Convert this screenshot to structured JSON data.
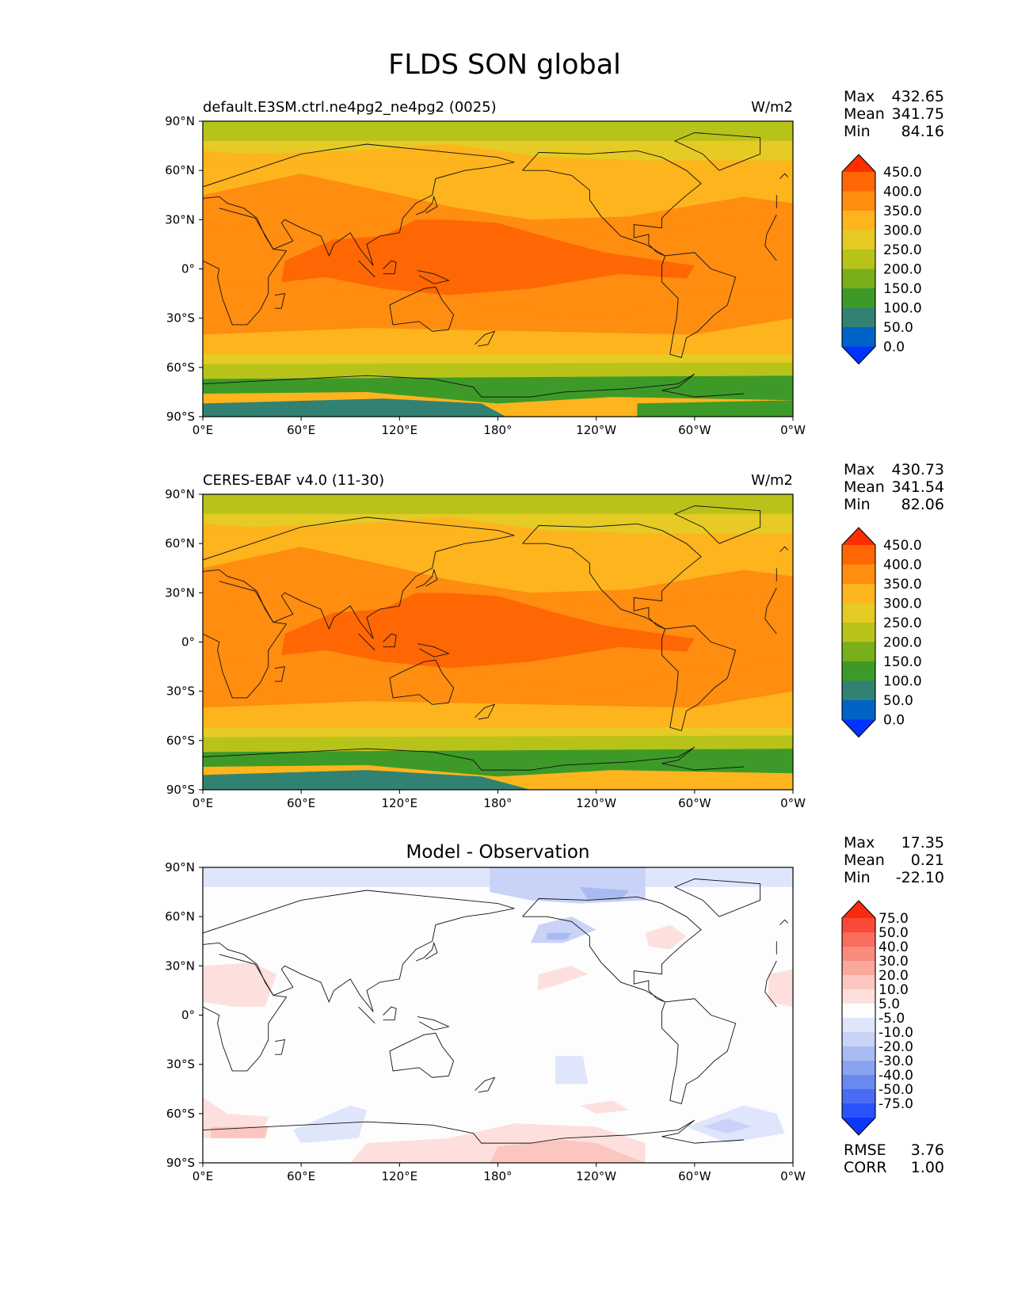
{
  "figure": {
    "title": "FLDS SON global"
  },
  "colors": {
    "mean_scale": [
      "#0033ff",
      "#0063c6",
      "#318272",
      "#3d9a28",
      "#7aaf1c",
      "#b8c31a",
      "#e5cb24",
      "#fdb41d",
      "#ff8d10",
      "#ff6705",
      "#ff2d00"
    ],
    "diff_scale": [
      "#0b37fd",
      "#2b53fb",
      "#4a6cf4",
      "#6a89ee",
      "#8aa2f0",
      "#a9baf3",
      "#c8d3f7",
      "#dfe6fb",
      "#fdfdfd",
      "#fde0de",
      "#fcc6c0",
      "#faa79c",
      "#f88b7c",
      "#f86d5c",
      "#f94a37",
      "#fa2a0f"
    ]
  },
  "chart_data": [
    {
      "type": "contour-map",
      "title_left": "default.E3SM.ctrl.ne4pg2_ne4pg2 (0025)",
      "units": "W/m2",
      "xticks": [
        "0°E",
        "60°E",
        "120°E",
        "180°",
        "120°W",
        "60°W",
        "0°W"
      ],
      "yticks": [
        "90°N",
        "60°N",
        "30°N",
        "0°",
        "30°S",
        "60°S",
        "90°S"
      ],
      "stats": {
        "max": {
          "label": "Max",
          "value": "432.65"
        },
        "mean": {
          "label": "Mean",
          "value": "341.75"
        },
        "min": {
          "label": "Min",
          "value": "84.16"
        }
      },
      "colorbar": {
        "levels": [
          "450.0",
          "400.0",
          "350.0",
          "300.0",
          "250.0",
          "200.0",
          "150.0",
          "100.0",
          "50.0",
          "0.0"
        ]
      }
    },
    {
      "type": "contour-map",
      "title_left": "CERES-EBAF v4.0 (11-30)",
      "units": "W/m2",
      "xticks": [
        "0°E",
        "60°E",
        "120°E",
        "180°",
        "120°W",
        "60°W",
        "0°W"
      ],
      "yticks": [
        "90°N",
        "60°N",
        "30°N",
        "0°",
        "30°S",
        "60°S",
        "90°S"
      ],
      "stats": {
        "max": {
          "label": "Max",
          "value": "430.73"
        },
        "mean": {
          "label": "Mean",
          "value": "341.54"
        },
        "min": {
          "label": "Min",
          "value": "82.06"
        }
      },
      "colorbar": {
        "levels": [
          "450.0",
          "400.0",
          "350.0",
          "300.0",
          "250.0",
          "200.0",
          "150.0",
          "100.0",
          "50.0",
          "0.0"
        ]
      }
    },
    {
      "type": "contour-map",
      "title_center": "Model - Observation",
      "xticks": [
        "0°E",
        "60°E",
        "120°E",
        "180°",
        "120°W",
        "60°W",
        "0°W"
      ],
      "yticks": [
        "90°N",
        "60°N",
        "30°N",
        "0°",
        "30°S",
        "60°S",
        "90°S"
      ],
      "stats": {
        "max": {
          "label": "Max",
          "value": "17.35"
        },
        "mean": {
          "label": "Mean",
          "value": "0.21"
        },
        "min": {
          "label": "Min",
          "value": "-22.10"
        }
      },
      "colorbar": {
        "levels": [
          "75.0",
          "50.0",
          "40.0",
          "30.0",
          "20.0",
          "10.0",
          "5.0",
          "-5.0",
          "-10.0",
          "-20.0",
          "-30.0",
          "-40.0",
          "-50.0",
          "-75.0"
        ]
      },
      "metrics": {
        "rmse": {
          "label": "RMSE",
          "value": "3.76"
        },
        "corr": {
          "label": "CORR",
          "value": "1.00"
        }
      }
    }
  ]
}
